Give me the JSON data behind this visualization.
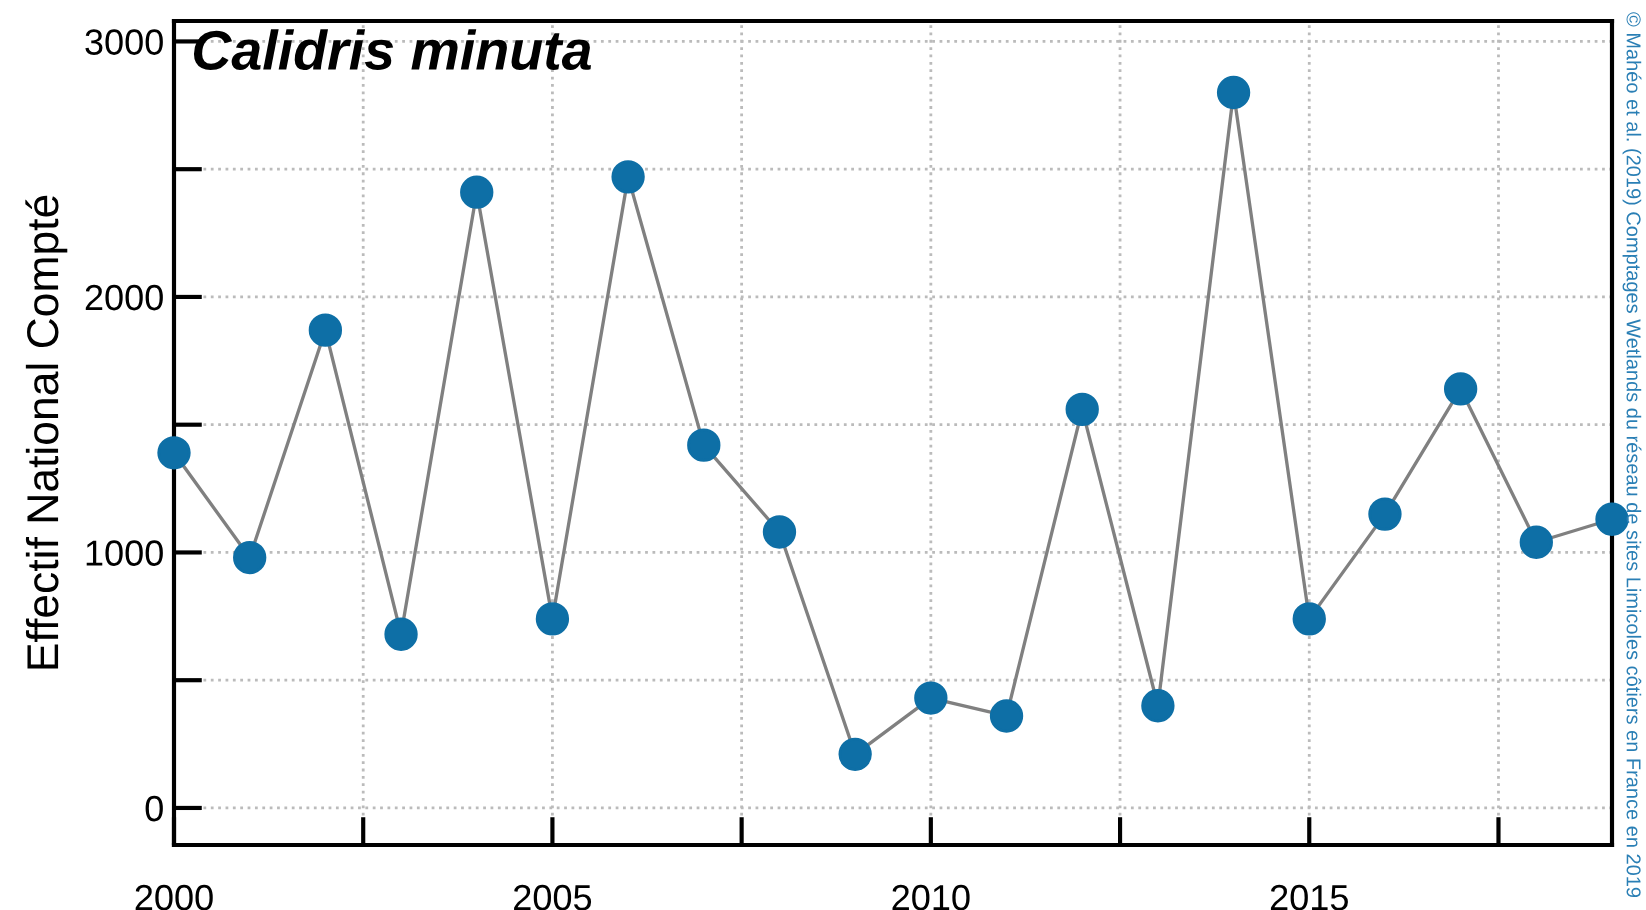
{
  "chart_data": {
    "type": "line",
    "title": "Calidris minuta",
    "ylabel": "Effectif National Compté",
    "annotations": [
      "© Mahéo et al. (2019) Comptages Wetlands du réseau de sites Limicoles côtiers en France en 2019"
    ],
    "x": [
      2000,
      2001,
      2002,
      2003,
      2004,
      2005,
      2006,
      2007,
      2008,
      2009,
      2010,
      2011,
      2012,
      2013,
      2014,
      2015,
      2016,
      2017,
      2018,
      2019
    ],
    "series": [
      {
        "color": "#0e6fa6",
        "values": [
          1390,
          980,
          1870,
          680,
          2410,
          740,
          2470,
          1420,
          1080,
          210,
          430,
          360,
          1560,
          400,
          2800,
          740,
          1150,
          1640,
          1040,
          1130
        ]
      }
    ],
    "xlim": [
      2000,
      2019
    ],
    "ylim": [
      -145,
      3080
    ],
    "xticks": [
      2000,
      {
        "value": 2002.5,
        "label": null
      },
      2005,
      {
        "value": 2007.5,
        "label": null
      },
      2010,
      {
        "value": 2012.5,
        "label": null
      },
      2015,
      {
        "value": 2017.5,
        "label": null
      }
    ],
    "yticks": [
      0,
      {
        "value": 500,
        "label": null
      },
      1000,
      {
        "value": 1500,
        "label": null
      },
      2000,
      {
        "value": 2500,
        "label": null
      },
      3000
    ],
    "grid": true,
    "marker": "circle",
    "line_style": "solid"
  }
}
